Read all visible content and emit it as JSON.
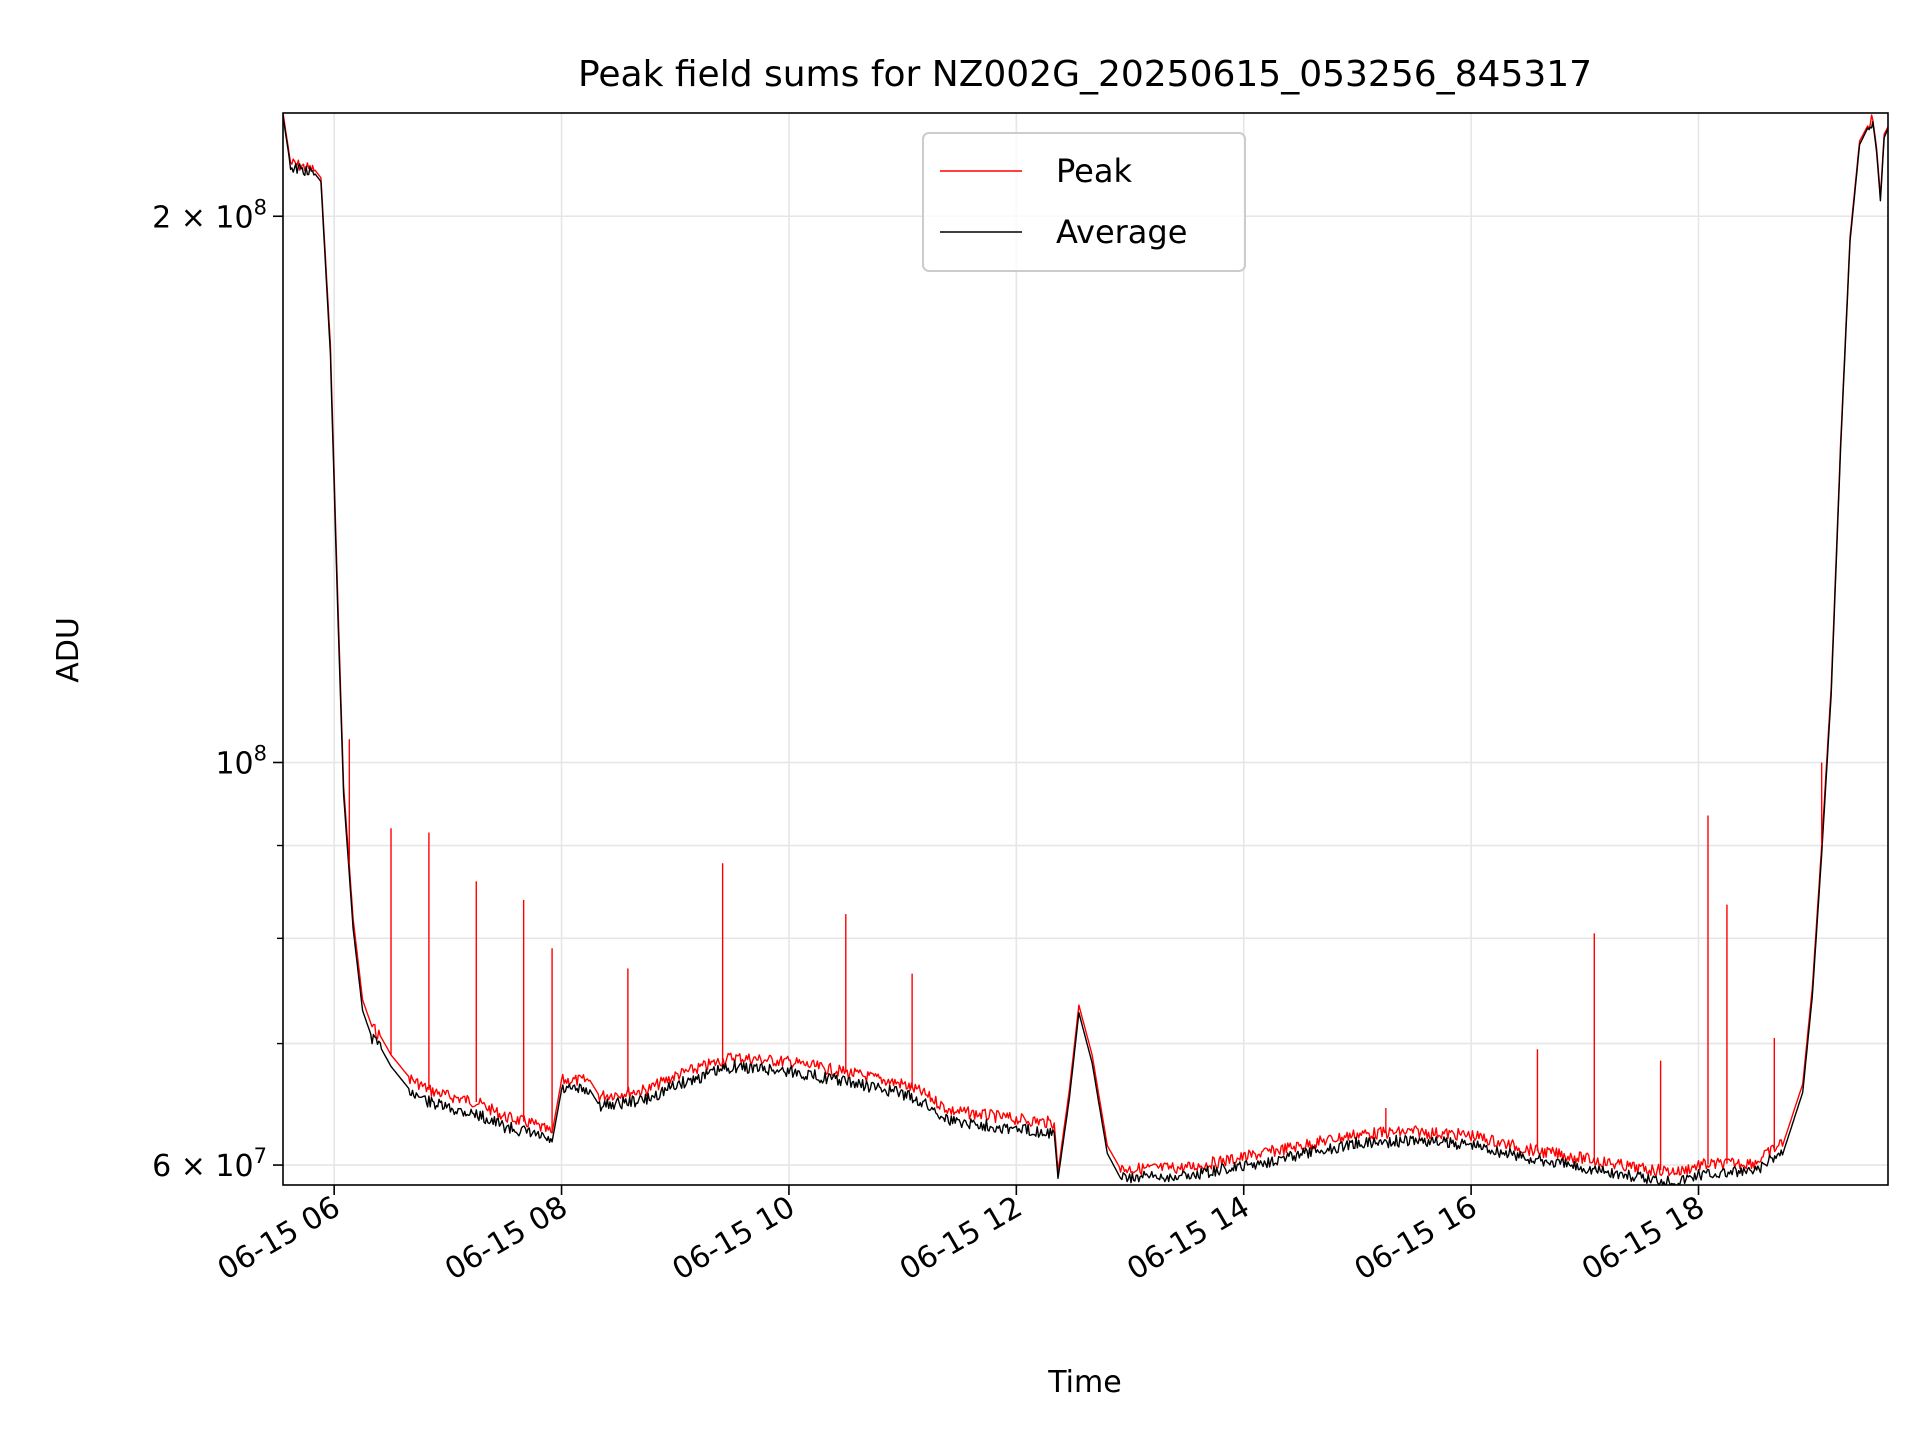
{
  "chart_data": {
    "type": "line",
    "title": "Peak field sums for NZ002G_20250615_053256_845317",
    "xlabel": "Time",
    "ylabel": "ADU",
    "y_scale": "log",
    "grid": true,
    "legend_position": "top-center",
    "xlim": [
      "06-15 05:33",
      "06-15 19:40"
    ],
    "ylim": [
      58500000,
      228000000
    ],
    "x_ticks": [
      "06-15 06",
      "06-15 08",
      "06-15 10",
      "06-15 12",
      "06-15 14",
      "06-15 16",
      "06-15 18"
    ],
    "y_ticks": [
      {
        "value": 60000000,
        "base": "6 × 10",
        "exp": "7"
      },
      {
        "value": 100000000,
        "base": "10",
        "exp": "8"
      },
      {
        "value": 200000000,
        "base": "2 × 10",
        "exp": "8"
      }
    ],
    "series": [
      {
        "name": "Peak",
        "color": "#ff0000",
        "x": [
          "06-15 05:33",
          "06-15 05:37",
          "06-15 05:50",
          "06-15 05:53",
          "06-15 05:58",
          "06-15 06:02",
          "06-15 06:05",
          "06-15 06:10",
          "06-15 06:15",
          "06-15 06:20",
          "06-15 06:25",
          "06-15 06:30",
          "06-15 06:40",
          "06-15 06:50",
          "06-15 07:00",
          "06-15 07:15",
          "06-15 07:30",
          "06-15 07:45",
          "06-15 07:55",
          "06-15 08:00",
          "06-15 08:15",
          "06-15 08:20",
          "06-15 08:45",
          "06-15 09:00",
          "06-15 09:30",
          "06-15 10:00",
          "06-15 10:30",
          "06-15 11:00",
          "06-15 11:10",
          "06-15 11:25",
          "06-15 12:00",
          "06-15 12:20",
          "06-15 12:22",
          "06-15 12:28",
          "06-15 12:33",
          "06-15 12:40",
          "06-15 12:48",
          "06-15 12:55",
          "06-15 13:30",
          "06-15 14:00",
          "06-15 14:30",
          "06-15 15:00",
          "06-15 15:30",
          "06-15 16:00",
          "06-15 16:30",
          "06-15 17:00",
          "06-15 17:30",
          "06-15 17:50",
          "06-15 18:00",
          "06-15 18:30",
          "06-15 18:45",
          "06-15 18:55",
          "06-15 19:00",
          "06-15 19:05",
          "06-15 19:10",
          "06-15 19:15",
          "06-15 19:20",
          "06-15 19:25",
          "06-15 19:30",
          "06-15 19:32",
          "06-15 19:34",
          "06-15 19:36",
          "06-15 19:38",
          "06-15 19:40"
        ],
        "y": [
          228000000,
          214000000,
          212000000,
          210000000,
          170000000,
          122000000,
          97000000,
          82000000,
          74000000,
          71500000,
          70500000,
          69000000,
          67000000,
          66000000,
          65500000,
          65000000,
          63800000,
          63200000,
          62500000,
          66800000,
          66800000,
          65500000,
          66000000,
          67200000,
          68800000,
          68400000,
          67500000,
          66500000,
          65800000,
          64300000,
          63600000,
          63300000,
          59500000,
          66000000,
          73500000,
          69000000,
          61500000,
          59700000,
          59800000,
          60600000,
          61500000,
          62400000,
          62600000,
          62300000,
          61200000,
          60500000,
          59700000,
          59500000,
          60000000,
          60200000,
          61800000,
          66500000,
          75000000,
          90000000,
          110000000,
          150000000,
          195000000,
          220000000,
          225000000,
          226000000,
          218000000,
          205000000,
          222000000,
          224000000
        ],
        "spikes": [
          {
            "x": "06-15 06:08",
            "y": 103000000
          },
          {
            "x": "06-15 06:30",
            "y": 92000000
          },
          {
            "x": "06-15 06:50",
            "y": 91500000
          },
          {
            "x": "06-15 07:15",
            "y": 86000000
          },
          {
            "x": "06-15 07:40",
            "y": 84000000
          },
          {
            "x": "06-15 07:55",
            "y": 79000000
          },
          {
            "x": "06-15 08:35",
            "y": 77000000
          },
          {
            "x": "06-15 09:25",
            "y": 88000000
          },
          {
            "x": "06-15 10:30",
            "y": 82500000
          },
          {
            "x": "06-15 11:05",
            "y": 76500000
          },
          {
            "x": "06-15 15:15",
            "y": 64500000
          },
          {
            "x": "06-15 16:35",
            "y": 69500000
          },
          {
            "x": "06-15 17:05",
            "y": 80500000
          },
          {
            "x": "06-15 17:40",
            "y": 68500000
          },
          {
            "x": "06-15 18:05",
            "y": 93500000
          },
          {
            "x": "06-15 18:15",
            "y": 83500000
          },
          {
            "x": "06-15 18:40",
            "y": 70500000
          },
          {
            "x": "06-15 19:05",
            "y": 100000000
          }
        ]
      },
      {
        "name": "Average",
        "color": "#000000",
        "x": [
          "06-15 05:33",
          "06-15 05:37",
          "06-15 05:50",
          "06-15 05:53",
          "06-15 05:58",
          "06-15 06:02",
          "06-15 06:05",
          "06-15 06:10",
          "06-15 06:15",
          "06-15 06:20",
          "06-15 06:25",
          "06-15 06:30",
          "06-15 06:40",
          "06-15 06:50",
          "06-15 07:00",
          "06-15 07:15",
          "06-15 07:30",
          "06-15 07:45",
          "06-15 07:55",
          "06-15 08:00",
          "06-15 08:15",
          "06-15 08:20",
          "06-15 08:45",
          "06-15 09:00",
          "06-15 09:30",
          "06-15 10:00",
          "06-15 10:30",
          "06-15 11:00",
          "06-15 11:10",
          "06-15 11:25",
          "06-15 12:00",
          "06-15 12:20",
          "06-15 12:22",
          "06-15 12:28",
          "06-15 12:33",
          "06-15 12:40",
          "06-15 12:48",
          "06-15 12:55",
          "06-15 13:30",
          "06-15 14:00",
          "06-15 14:30",
          "06-15 15:00",
          "06-15 15:30",
          "06-15 16:00",
          "06-15 16:30",
          "06-15 17:00",
          "06-15 17:30",
          "06-15 17:50",
          "06-15 18:00",
          "06-15 18:30",
          "06-15 18:45",
          "06-15 18:55",
          "06-15 19:00",
          "06-15 19:05",
          "06-15 19:10",
          "06-15 19:15",
          "06-15 19:20",
          "06-15 19:25",
          "06-15 19:30",
          "06-15 19:32",
          "06-15 19:34",
          "06-15 19:36",
          "06-15 19:38",
          "06-15 19:40"
        ],
        "y": [
          227000000,
          213000000,
          211000000,
          209000000,
          168000000,
          120000000,
          96000000,
          81000000,
          73000000,
          70500000,
          69500000,
          68000000,
          66000000,
          65000000,
          64500000,
          64000000,
          63000000,
          62400000,
          61800000,
          66000000,
          66000000,
          64700000,
          65200000,
          66400000,
          68000000,
          67600000,
          66700000,
          65700000,
          65000000,
          63500000,
          62800000,
          62500000,
          59000000,
          65300000,
          72800000,
          68300000,
          60900000,
          59000000,
          59200000,
          59900000,
          60800000,
          61700000,
          61900000,
          61600000,
          60500000,
          59800000,
          59000000,
          58800000,
          59300000,
          59500000,
          61100000,
          65800000,
          74200000,
          89000000,
          109000000,
          149000000,
          194000000,
          219000000,
          224500000,
          225500000,
          217000000,
          204000000,
          221000000,
          223500000
        ]
      }
    ]
  }
}
